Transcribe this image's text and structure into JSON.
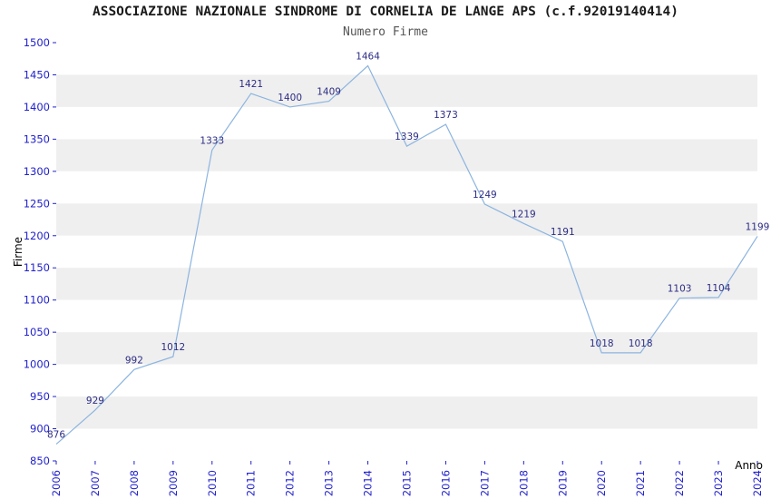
{
  "chart_data": {
    "type": "line",
    "title": "ASSOCIAZIONE NAZIONALE SINDROME DI CORNELIA DE LANGE APS (c.f.92019140414)",
    "subtitle": "Numero Firme",
    "xlabel": "Anno",
    "ylabel": "Firme",
    "categories": [
      "2006",
      "2007",
      "2008",
      "2009",
      "2010",
      "2011",
      "2012",
      "2013",
      "2014",
      "2015",
      "2016",
      "2017",
      "2018",
      "2019",
      "2020",
      "2021",
      "2022",
      "2023",
      "2024"
    ],
    "values": [
      876,
      929,
      992,
      1012,
      1333,
      1421,
      1400,
      1409,
      1464,
      1339,
      1373,
      1249,
      1219,
      1191,
      1018,
      1018,
      1103,
      1104,
      1199
    ],
    "ylim": [
      850,
      1500
    ],
    "ytick_step": 50,
    "grid": "alternating-horizontal-bands",
    "legend": "none",
    "line_color": "#8cb4e0",
    "label_color": "#2d2d86",
    "tick_color": "#2222cc",
    "axis_label_color": "#000000",
    "band_colors": [
      "#ffffff",
      "#efefef"
    ]
  }
}
